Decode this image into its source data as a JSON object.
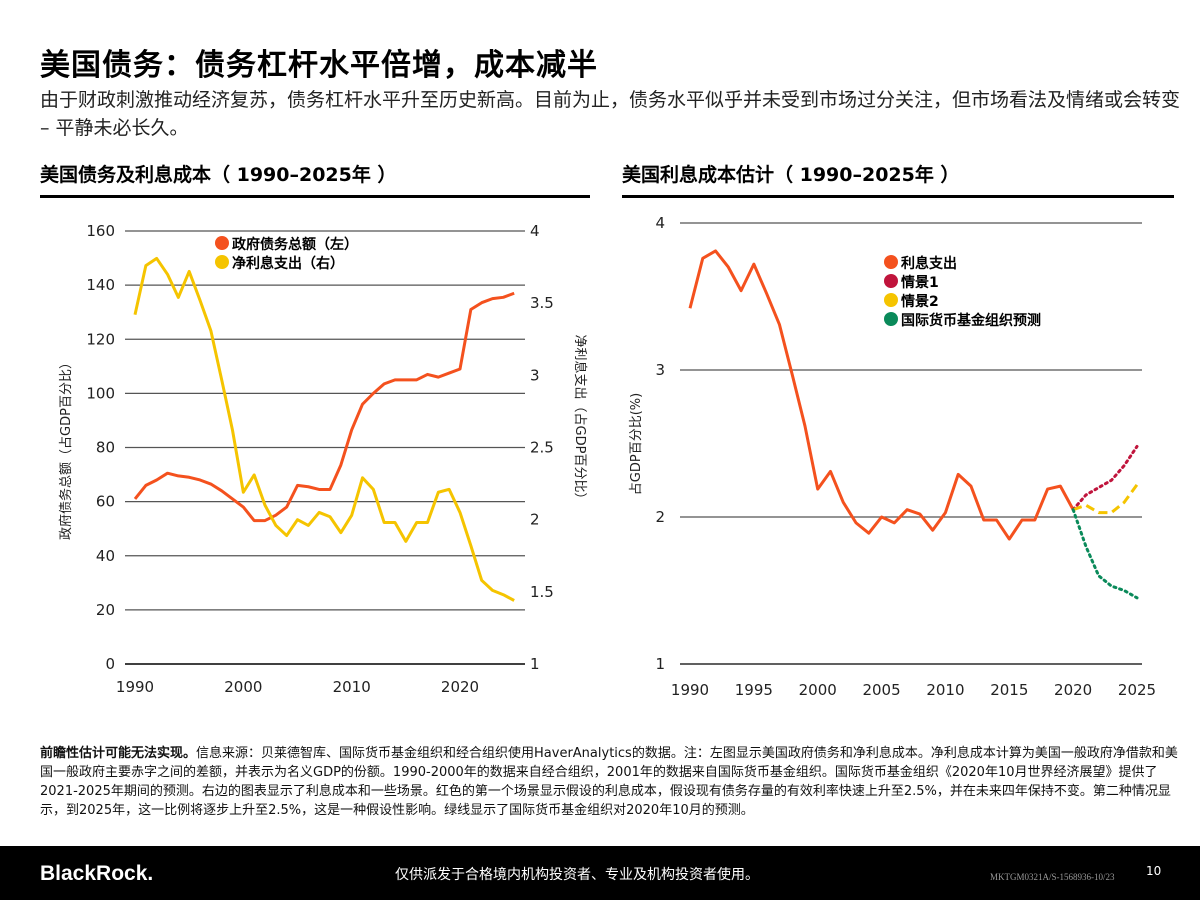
{
  "title": "美国债务：债务杠杆水平倍增，成本减半",
  "subtitle": "由于财政刺激推动经济复苏，债务杠杆水平升至历史新高。目前为止，债务水平似乎并未受到市场过分关注，但市场看法及情绪或会转变 – 平静未必长久。",
  "notes_bold": "前瞻性估计可能无法实现。",
  "notes": "信息来源：贝莱德智库、国际货币基金组织和经合组织使用HaverAnalytics的数据。注：左图显示美国政府债务和净利息成本。净利息成本计算为美国一般政府净借款和美国一般政府主要赤字之间的差额，并表示为名义GDP的份额。1990-2000年的数据来自经合组织，2001年的数据来自国际货币基金组织。国际货币基金组织《2020年10月世界经济展望》提供了2021-2025年期间的预测。右边的图表显示了利息成本和一些场景。红色的第一个场景显示假设的利息成本，假设现有债务存量的有效利率快速上升至2.5%，并在未来四年保持不变。第二种情况显示，到2025年，这一比例将逐步上升至2.5%，这是一种假设性影响。绿线显示了国际货币基金组织对2020年10月的预测。",
  "footer": {
    "logo": "BlackRock.",
    "disclaimer": "仅供派发于合格境内机构投资者、专业及机构投资者使用。",
    "code": "MKTGM0321A/S-1568936-10/23",
    "page": "10"
  },
  "chart_data": [
    {
      "type": "line",
      "title": "美国债务及利息成本（ 1990–2025年 ）",
      "x": [
        1990,
        1991,
        1992,
        1993,
        1994,
        1995,
        1996,
        1997,
        1998,
        1999,
        2000,
        2001,
        2002,
        2003,
        2004,
        2005,
        2006,
        2007,
        2008,
        2009,
        2010,
        2011,
        2012,
        2013,
        2014,
        2015,
        2016,
        2017,
        2018,
        2019,
        2020,
        2021,
        2022,
        2023,
        2024,
        2025
      ],
      "xticks": [
        1990,
        2000,
        2010,
        2020
      ],
      "xlim": [
        1990,
        2025
      ],
      "ylabel": "政府债务总额（占GDP百分比）",
      "ylim": [
        0,
        160
      ],
      "yticks": [
        0,
        20,
        40,
        60,
        80,
        100,
        120,
        140,
        160
      ],
      "y2label": "净利息支出（占GDP百分比）",
      "y2lim": [
        1,
        4
      ],
      "y2ticks": [
        "1",
        "1.5",
        "2",
        "2.5",
        "3",
        "3.5",
        "4"
      ],
      "legend_position": "top-center",
      "grid": true,
      "series": [
        {
          "name": "政府债务总额（左）",
          "axis": "left",
          "color": "#f4511e",
          "values": [
            61,
            66,
            68,
            70.5,
            69.5,
            69,
            68,
            66.5,
            64,
            61,
            58,
            53,
            53,
            55,
            58,
            66,
            65.5,
            64.5,
            64.5,
            73.5,
            86.5,
            96,
            100,
            103.5,
            105,
            105,
            105,
            107,
            106,
            107.5,
            109,
            131,
            133.5,
            135,
            135.5,
            137
          ]
        },
        {
          "name": "净利息支出（右）",
          "axis": "right",
          "color": "#f5c400",
          "values": [
            3.42,
            3.76,
            3.81,
            3.7,
            3.54,
            3.72,
            3.52,
            3.31,
            2.97,
            2.62,
            2.19,
            2.31,
            2.1,
            1.96,
            1.89,
            2.0,
            1.96,
            2.05,
            2.02,
            1.91,
            2.03,
            2.29,
            2.21,
            1.98,
            1.98,
            1.85,
            1.98,
            1.98,
            2.19,
            2.21,
            2.05,
            1.82,
            1.58,
            1.51,
            1.48,
            1.44
          ]
        }
      ]
    },
    {
      "type": "line",
      "title": "美国利息成本估计（ 1990–2025年 ）",
      "xticks": [
        1990,
        1995,
        2000,
        2005,
        2010,
        2015,
        2020,
        2025
      ],
      "xlim": [
        1990,
        2025
      ],
      "ylabel": "占GDP百分比(%)",
      "ylim": [
        1,
        4
      ],
      "yticks": [
        "1",
        "2",
        "3",
        "4"
      ],
      "grid": true,
      "legend_position": "top-center",
      "series": [
        {
          "name": "利息支出",
          "color": "#f4511e",
          "style": "solid",
          "x": [
            1990,
            1991,
            1992,
            1993,
            1994,
            1995,
            1996,
            1997,
            1998,
            1999,
            2000,
            2001,
            2002,
            2003,
            2004,
            2005,
            2006,
            2007,
            2008,
            2009,
            2010,
            2011,
            2012,
            2013,
            2014,
            2015,
            2016,
            2017,
            2018,
            2019,
            2020
          ],
          "values": [
            3.42,
            3.76,
            3.81,
            3.7,
            3.54,
            3.72,
            3.52,
            3.31,
            2.97,
            2.62,
            2.19,
            2.31,
            2.1,
            1.96,
            1.89,
            2.0,
            1.96,
            2.05,
            2.02,
            1.91,
            2.03,
            2.29,
            2.21,
            1.98,
            1.98,
            1.85,
            1.98,
            1.98,
            2.19,
            2.21,
            2.05
          ]
        },
        {
          "name": "情景1",
          "color": "#c0143c",
          "style": "dotted",
          "x": [
            2020,
            2021,
            2022,
            2023,
            2024,
            2025
          ],
          "values": [
            2.05,
            2.15,
            2.2,
            2.25,
            2.35,
            2.48
          ]
        },
        {
          "name": "情景2",
          "color": "#f5c400",
          "style": "dashed",
          "x": [
            2020,
            2021,
            2022,
            2023,
            2024,
            2025
          ],
          "values": [
            2.05,
            2.08,
            2.03,
            2.03,
            2.1,
            2.22
          ]
        },
        {
          "name": "国际货币基金组织预测",
          "color": "#0a8a5a",
          "style": "dotted",
          "x": [
            2020,
            2021,
            2022,
            2023,
            2024,
            2025
          ],
          "values": [
            2.05,
            1.8,
            1.6,
            1.53,
            1.5,
            1.45
          ]
        }
      ]
    }
  ]
}
